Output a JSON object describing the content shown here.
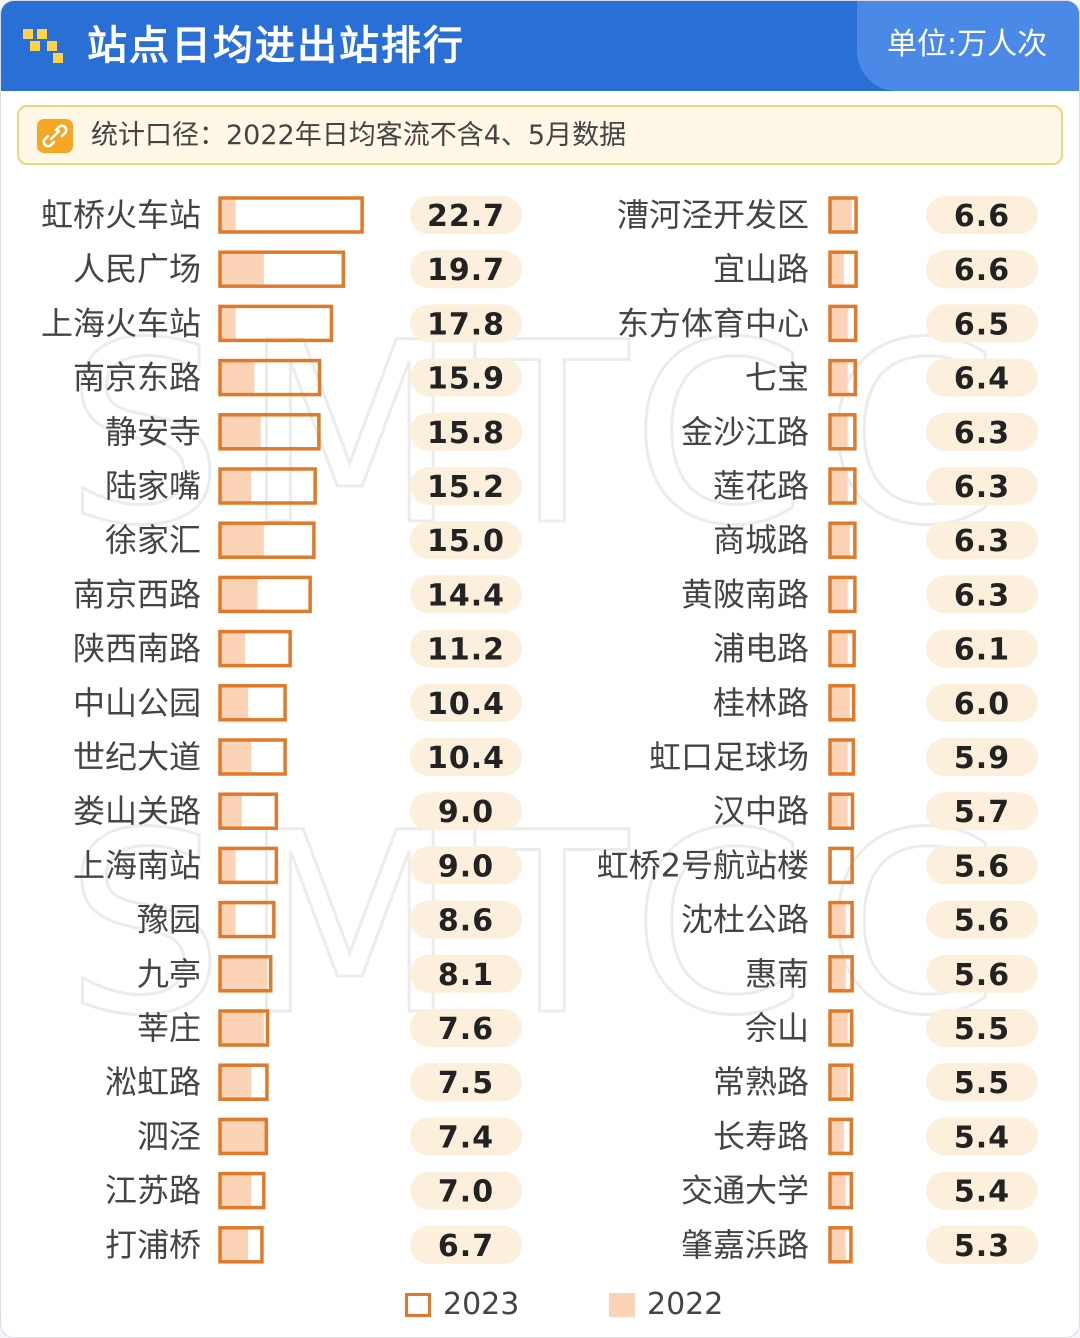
{
  "header": {
    "title": "站点日均进出站排行",
    "unit": "单位:万人次"
  },
  "note": {
    "text": "统计口径：2022年日均客流不含4、5月数据"
  },
  "watermark": "SMTCC",
  "colors": {
    "header_bg": "#2a6fd6",
    "bar_2023_border": "#e07a2a",
    "bar_2022_fill": "#fbd3b6",
    "value_pill": "#fcefdc"
  },
  "chart_data": {
    "type": "bar",
    "title": "站点日均进出站排行",
    "unit": "单位:万人次",
    "orientation": "horizontal",
    "legend": [
      "2023",
      "2022"
    ],
    "legend_position": "bottom",
    "columns": [
      {
        "stations": [
          "虹桥火车站",
          "人民广场",
          "上海火车站",
          "南京东路",
          "静安寺",
          "陆家嘴",
          "徐家汇",
          "南京西路",
          "陕西南路",
          "中山公园",
          "世纪大道",
          "娄山关路",
          "上海南站",
          "豫园",
          "九亭",
          "莘庄",
          "淞虹路",
          "泗泾",
          "江苏路",
          "打浦桥"
        ],
        "values_2023": [
          22.7,
          19.7,
          17.8,
          15.9,
          15.8,
          15.2,
          15.0,
          14.4,
          11.2,
          10.4,
          10.4,
          9.0,
          9.0,
          8.6,
          8.1,
          7.6,
          7.5,
          7.4,
          7.0,
          6.7
        ],
        "labels_2023": [
          "22.7",
          "19.7",
          "17.8",
          "15.9",
          "15.8",
          "15.2",
          "15.0",
          "14.4",
          "11.2",
          "10.4",
          "10.4",
          "9.0",
          "9.0",
          "8.6",
          "8.1",
          "7.6",
          "7.5",
          "7.4",
          "7.0",
          "6.7"
        ],
        "values_2022": [
          2.5,
          7.0,
          2.5,
          5.5,
          6.5,
          5.0,
          7.0,
          6.0,
          4.0,
          4.5,
          5.0,
          3.5,
          2.5,
          2.5,
          7.5,
          7.0,
          5.0,
          7.5,
          5.0,
          4.5
        ]
      },
      {
        "stations": [
          "漕河泾开发区",
          "宜山路",
          "东方体育中心",
          "七宝",
          "金沙江路",
          "莲花路",
          "商城路",
          "黄陂南路",
          "浦电路",
          "桂林路",
          "虹口足球场",
          "汉中路",
          "虹桥2号航站楼",
          "沈杜公路",
          "惠南",
          "佘山",
          "常熟路",
          "长寿路",
          "交通大学",
          "肇嘉浜路"
        ],
        "values_2023": [
          6.6,
          6.6,
          6.5,
          6.4,
          6.3,
          6.3,
          6.3,
          6.3,
          6.1,
          6.0,
          5.9,
          5.7,
          5.6,
          5.6,
          5.6,
          5.5,
          5.5,
          5.4,
          5.4,
          5.3
        ],
        "labels_2023": [
          "6.6",
          "6.6",
          "6.5",
          "6.4",
          "6.3",
          "6.3",
          "6.3",
          "6.3",
          "6.1",
          "6.0",
          "5.9",
          "5.7",
          "5.6",
          "5.6",
          "5.6",
          "5.5",
          "5.5",
          "5.4",
          "5.4",
          "5.3"
        ],
        "values_2022": [
          5.5,
          3.5,
          4.5,
          4.5,
          4.5,
          4.5,
          5.0,
          4.5,
          4.5,
          5.0,
          4.5,
          4.5,
          0.5,
          4.0,
          4.0,
          4.5,
          4.5,
          3.5,
          4.0,
          4.0
        ]
      }
    ],
    "grid": false
  }
}
